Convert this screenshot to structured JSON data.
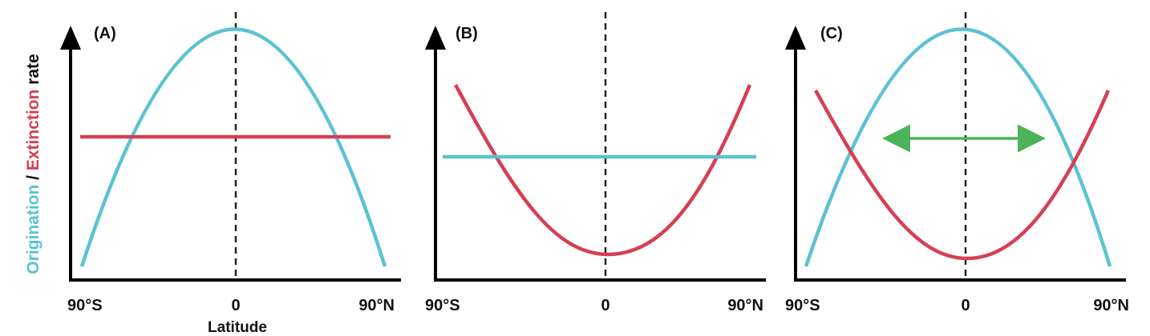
{
  "colors": {
    "origination": "#5bc2d3",
    "extinction": "#d63f52",
    "axis": "#000000",
    "dashed": "#222222",
    "arrow": "#4bb35a",
    "rate_text": "#111111"
  },
  "y_axis_label": {
    "part1": "Origination",
    "separator": " / ",
    "part2": "Extinction",
    "part3": " rate"
  },
  "x_axis_label": "Latitude",
  "ticks": {
    "left": "90°S",
    "center": "0",
    "right": "90°N"
  },
  "panels": [
    {
      "label": "(A)",
      "origination_shape": "hump peaking at equator",
      "extinction_shape": "flat"
    },
    {
      "label": "(B)",
      "origination_shape": "flat",
      "extinction_shape": "trough at equator"
    },
    {
      "label": "(C)",
      "origination_shape": "hump peaking at equator",
      "extinction_shape": "trough at equator",
      "annotation": "double-headed-arrow"
    }
  ]
}
